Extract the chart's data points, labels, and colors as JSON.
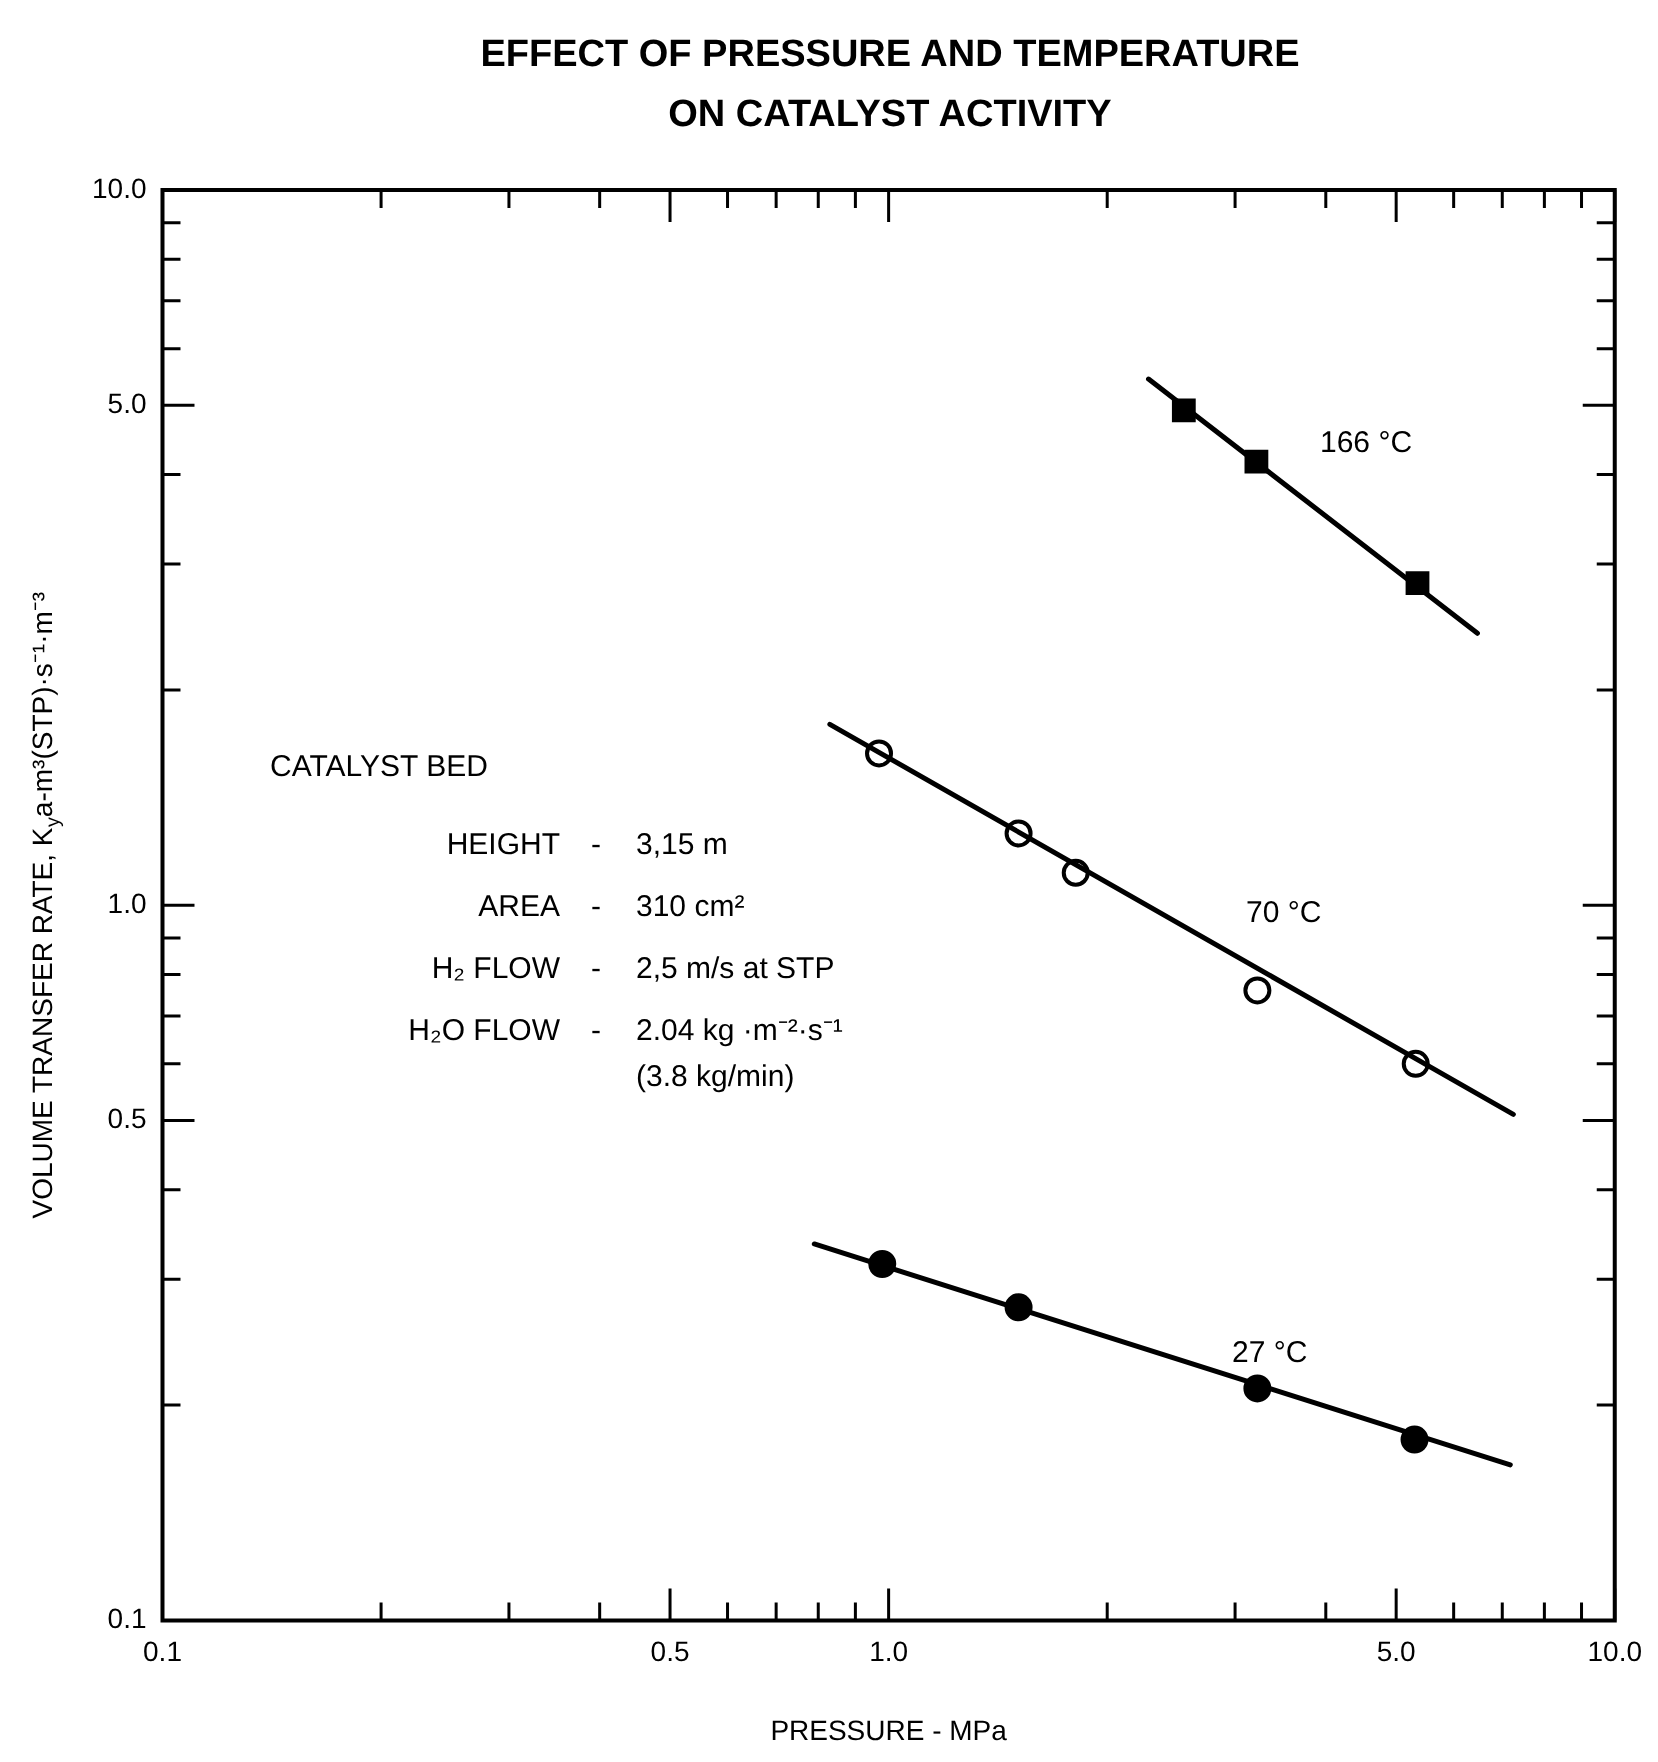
{
  "chart_data": {
    "type": "scatter",
    "title": "EFFECT OF PRESSURE AND TEMPERATURE ON CATALYST ACTIVITY",
    "xlabel": "PRESSURE - MPa",
    "ylabel": "VOLUME TRANSFER RATE, K$_{y}$a-m³(STP)·s⁻¹·m⁻³",
    "log": "xy",
    "grid": false,
    "legend": false,
    "xlim": [
      0.1,
      10
    ],
    "ylim": [
      0.1,
      10
    ],
    "xticks": [
      {
        "value": 0.1,
        "label": "0.1"
      },
      {
        "value": 0.2,
        "label": null
      },
      {
        "value": 0.3,
        "label": null
      },
      {
        "value": 0.4,
        "label": null
      },
      {
        "value": 0.5,
        "label": "0.5"
      },
      {
        "value": 0.6,
        "label": null
      },
      {
        "value": 0.7,
        "label": null
      },
      {
        "value": 0.8,
        "label": null
      },
      {
        "value": 0.9,
        "label": null
      },
      {
        "value": 1,
        "label": "1.0"
      },
      {
        "value": 2,
        "label": null
      },
      {
        "value": 3,
        "label": null
      },
      {
        "value": 4,
        "label": null
      },
      {
        "value": 5,
        "label": "5.0"
      },
      {
        "value": 6,
        "label": null
      },
      {
        "value": 7,
        "label": null
      },
      {
        "value": 8,
        "label": null
      },
      {
        "value": 9,
        "label": null
      },
      {
        "value": 10,
        "label": "10.0"
      }
    ],
    "yticks": [
      {
        "value": 0.1,
        "label": "0.1"
      },
      {
        "value": 0.2,
        "label": null
      },
      {
        "value": 0.3,
        "label": null
      },
      {
        "value": 0.4,
        "label": null
      },
      {
        "value": 0.5,
        "label": "0.5"
      },
      {
        "value": 0.6,
        "label": null
      },
      {
        "value": 0.7,
        "label": null
      },
      {
        "value": 0.8,
        "label": null
      },
      {
        "value": 0.9,
        "label": null
      },
      {
        "value": 1,
        "label": "1.0"
      },
      {
        "value": 2,
        "label": null
      },
      {
        "value": 3,
        "label": null
      },
      {
        "value": 4,
        "label": null
      },
      {
        "value": 5,
        "label": "5.0"
      },
      {
        "value": 6,
        "label": null
      },
      {
        "value": 7,
        "label": null
      },
      {
        "value": 8,
        "label": null
      },
      {
        "value": 9,
        "label": null
      },
      {
        "value": 10,
        "label": "10.0"
      }
    ],
    "series": [
      {
        "marker": "square",
        "color": "#000000",
        "x": [
          2.55,
          3.21,
          5.35
        ],
        "values": [
          4.92,
          4.17,
          2.82
        ]
      },
      {
        "type": "line",
        "marker": "none",
        "color": "#000000",
        "x": [
          2.28,
          6.47
        ],
        "values": [
          5.44,
          2.4
        ]
      },
      {
        "marker": "circle",
        "color": "#ffffff",
        "x": [
          0.97,
          1.51,
          1.81,
          3.22,
          5.32
        ],
        "values": [
          1.63,
          1.26,
          1.11,
          0.76,
          0.6
        ]
      },
      {
        "type": "line",
        "marker": "none",
        "color": "#000000",
        "x": [
          0.83,
          7.25
        ],
        "values": [
          1.79,
          0.51
        ]
      },
      {
        "marker": "circle",
        "color": "#000000",
        "x": [
          0.98,
          1.51,
          3.22,
          5.3
        ],
        "values": [
          0.315,
          0.274,
          0.211,
          0.179
        ]
      },
      {
        "type": "line",
        "marker": "none",
        "color": "#000000",
        "x": [
          0.79,
          7.18
        ],
        "values": [
          0.336,
          0.165
        ]
      }
    ],
    "annotations": [
      "166 °C",
      "70 °C",
      "27 °C",
      "CATALYST BED",
      "HEIGHT - 3,15 m",
      "AREA - 310 cm²",
      "H₂ FLOW - 2,5 m/s at STP",
      "H₂O FLOW - 2.04 kg ·m⁻²·s⁻¹",
      "(3.8 kg/min)"
    ]
  }
}
